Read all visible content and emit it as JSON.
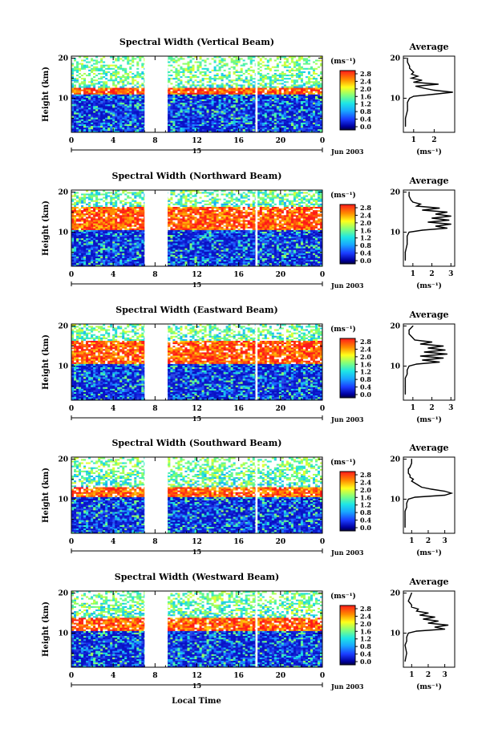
{
  "figure": {
    "y_axis_label": "Height (km)",
    "x_axis_label": "Local Time",
    "day_label": "15",
    "date_label": "Jun 2003",
    "colorbar_unit_label": "(ms⁻¹)",
    "avg_title": "Average",
    "avg_unit_label": "(ms⁻¹)"
  },
  "chart_data": [
    {
      "type": "heatmap",
      "title": "Spectral Width (Vertical Beam)",
      "xlabel": "Local Time",
      "ylabel": "Height (km)",
      "xlim": [
        0,
        24
      ],
      "ylim": [
        1.5,
        20.5
      ],
      "x_ticks": [
        "0",
        "4",
        "8",
        "12",
        "16",
        "20",
        "0"
      ],
      "y_ticks": [
        "20",
        "10"
      ],
      "colorbar_ticks": [
        "2.8",
        "2.4",
        "2.0",
        "1.6",
        "1.2",
        "0.8",
        "0.4",
        "0.0"
      ],
      "data_gaps": [
        [
          7.0,
          9.2
        ],
        [
          17.6,
          17.8
        ]
      ],
      "high_width_layer_km": [
        11,
        12.5
      ],
      "average_profile": {
        "xlim": [
          0.5,
          3.0
        ],
        "x_ticks": [
          "1",
          "2"
        ],
        "y_ticks": [
          "20",
          "10"
        ],
        "heights_km": [
          3,
          5,
          7,
          8,
          9,
          10,
          10.5,
          11,
          11.5,
          12,
          12.5,
          13,
          13.5,
          14,
          14.5,
          15,
          15.5,
          16,
          16.5,
          17,
          17.5,
          18,
          19,
          20
        ],
        "values": [
          0.6,
          0.6,
          0.7,
          0.7,
          0.7,
          0.8,
          1.0,
          2.0,
          2.9,
          2.0,
          1.5,
          1.1,
          2.2,
          1.0,
          1.4,
          0.9,
          1.2,
          0.9,
          1.0,
          0.9,
          0.8,
          0.8,
          0.7,
          0.7
        ]
      }
    },
    {
      "type": "heatmap",
      "title": "Spectral Width (Northward Beam)",
      "xlabel": "Local Time",
      "ylabel": "Height (km)",
      "xlim": [
        0,
        24
      ],
      "ylim": [
        1.5,
        20.5
      ],
      "x_ticks": [
        "0",
        "4",
        "8",
        "12",
        "16",
        "20",
        "0"
      ],
      "y_ticks": [
        "20",
        "10"
      ],
      "colorbar_ticks": [
        "2.8",
        "2.4",
        "2.0",
        "1.6",
        "1.2",
        "0.8",
        "0.4",
        "0.0"
      ],
      "data_gaps": [
        [
          7.0,
          9.2
        ],
        [
          17.6,
          17.8
        ]
      ],
      "high_width_layer_km": [
        10.5,
        16.5
      ],
      "average_profile": {
        "xlim": [
          0.5,
          3.2
        ],
        "x_ticks": [
          "1",
          "2",
          "3"
        ],
        "y_ticks": [
          "20",
          "10"
        ],
        "heights_km": [
          3,
          5,
          7,
          8,
          9,
          10,
          10.5,
          11,
          11.5,
          12,
          12.5,
          13,
          13.5,
          14,
          14.5,
          15,
          15.5,
          16,
          16.5,
          17,
          17.5,
          18,
          19,
          20
        ],
        "values": [
          0.6,
          0.6,
          0.7,
          0.7,
          0.7,
          0.8,
          1.5,
          2.8,
          2.2,
          3.0,
          1.8,
          2.9,
          2.0,
          3.0,
          2.2,
          2.8,
          1.5,
          2.4,
          1.2,
          1.4,
          1.0,
          0.9,
          0.8,
          0.8
        ]
      }
    },
    {
      "type": "heatmap",
      "title": "Spectral Width (Eastward Beam)",
      "xlabel": "Local Time",
      "ylabel": "Height (km)",
      "xlim": [
        0,
        24
      ],
      "ylim": [
        1.5,
        20.5
      ],
      "x_ticks": [
        "0",
        "4",
        "8",
        "12",
        "16",
        "20",
        "0"
      ],
      "y_ticks": [
        "20",
        "10"
      ],
      "colorbar_ticks": [
        "2.8",
        "2.4",
        "2.0",
        "1.6",
        "1.2",
        "0.8",
        "0.4",
        "0.0"
      ],
      "data_gaps": [
        [
          7.0,
          9.2
        ],
        [
          17.6,
          17.8
        ]
      ],
      "high_width_layer_km": [
        10.5,
        16.5
      ],
      "average_profile": {
        "xlim": [
          0.5,
          3.2
        ],
        "x_ticks": [
          "1",
          "2",
          "3"
        ],
        "y_ticks": [
          "20",
          "10"
        ],
        "heights_km": [
          3,
          5,
          7,
          8,
          9,
          10,
          10.5,
          11,
          11.5,
          12,
          12.5,
          13,
          13.5,
          14,
          14.5,
          15,
          15.5,
          16,
          16.5,
          17,
          17.5,
          18,
          19,
          20
        ],
        "values": [
          0.6,
          0.6,
          0.6,
          0.7,
          0.7,
          0.8,
          1.2,
          2.4,
          1.5,
          2.6,
          1.4,
          2.8,
          1.6,
          2.7,
          1.8,
          2.6,
          1.4,
          2.0,
          1.1,
          1.0,
          0.9,
          0.8,
          0.8,
          1.0
        ]
      }
    },
    {
      "type": "heatmap",
      "title": "Spectral Width (Southward Beam)",
      "xlabel": "Local Time",
      "ylabel": "Height (km)",
      "xlim": [
        0,
        24
      ],
      "ylim": [
        1.5,
        20.5
      ],
      "x_ticks": [
        "0",
        "4",
        "8",
        "12",
        "16",
        "20",
        "0"
      ],
      "y_ticks": [
        "20",
        "10"
      ],
      "colorbar_ticks": [
        "2.8",
        "2.4",
        "2.0",
        "1.6",
        "1.2",
        "0.8",
        "0.4",
        "0.0"
      ],
      "data_gaps": [
        [
          7.0,
          9.2
        ],
        [
          17.6,
          17.8
        ]
      ],
      "high_width_layer_km": [
        10.5,
        13
      ],
      "average_profile": {
        "xlim": [
          0.5,
          3.6
        ],
        "x_ticks": [
          "1",
          "2",
          "3"
        ],
        "y_ticks": [
          "20",
          "10"
        ],
        "heights_km": [
          3,
          5,
          7,
          8,
          9,
          10,
          10.5,
          11,
          11.5,
          12,
          12.5,
          13,
          13.5,
          14,
          14.5,
          15,
          15.5,
          16,
          16.5,
          17,
          17.5,
          18,
          19,
          20
        ],
        "values": [
          0.6,
          0.6,
          0.6,
          0.7,
          0.7,
          0.8,
          1.2,
          3.0,
          3.4,
          3.0,
          2.2,
          1.6,
          1.4,
          1.2,
          1.0,
          1.1,
          0.9,
          0.9,
          0.8,
          0.8,
          0.8,
          0.9,
          1.0,
          1.0
        ]
      }
    },
    {
      "type": "heatmap",
      "title": "Spectral Width (Westward Beam)",
      "xlabel": "Local Time",
      "ylabel": "Height (km)",
      "xlim": [
        0,
        24
      ],
      "ylim": [
        1.5,
        20.5
      ],
      "x_ticks": [
        "0",
        "4",
        "8",
        "12",
        "16",
        "20",
        "0"
      ],
      "y_ticks": [
        "20",
        "10"
      ],
      "colorbar_ticks": [
        "2.8",
        "2.4",
        "2.0",
        "1.6",
        "1.2",
        "0.8",
        "0.4",
        "0.0"
      ],
      "data_gaps": [
        [
          7.0,
          9.2
        ],
        [
          17.6,
          17.8
        ]
      ],
      "high_width_layer_km": [
        10.5,
        14
      ],
      "average_profile": {
        "xlim": [
          0.5,
          3.6
        ],
        "x_ticks": [
          "1",
          "2",
          "3"
        ],
        "y_ticks": [
          "20",
          "10"
        ],
        "heights_km": [
          3,
          5,
          7,
          8,
          9,
          10,
          10.5,
          11,
          11.5,
          12,
          12.5,
          13,
          13.5,
          14,
          14.5,
          15,
          15.5,
          16,
          16.5,
          17,
          17.5,
          18,
          19,
          20
        ],
        "values": [
          0.6,
          0.7,
          0.6,
          0.7,
          0.7,
          0.8,
          1.3,
          3.0,
          2.4,
          3.2,
          2.0,
          2.6,
          1.7,
          2.4,
          1.5,
          2.0,
          1.3,
          1.4,
          1.0,
          1.0,
          0.9,
          0.8,
          0.9,
          1.0
        ]
      }
    }
  ]
}
